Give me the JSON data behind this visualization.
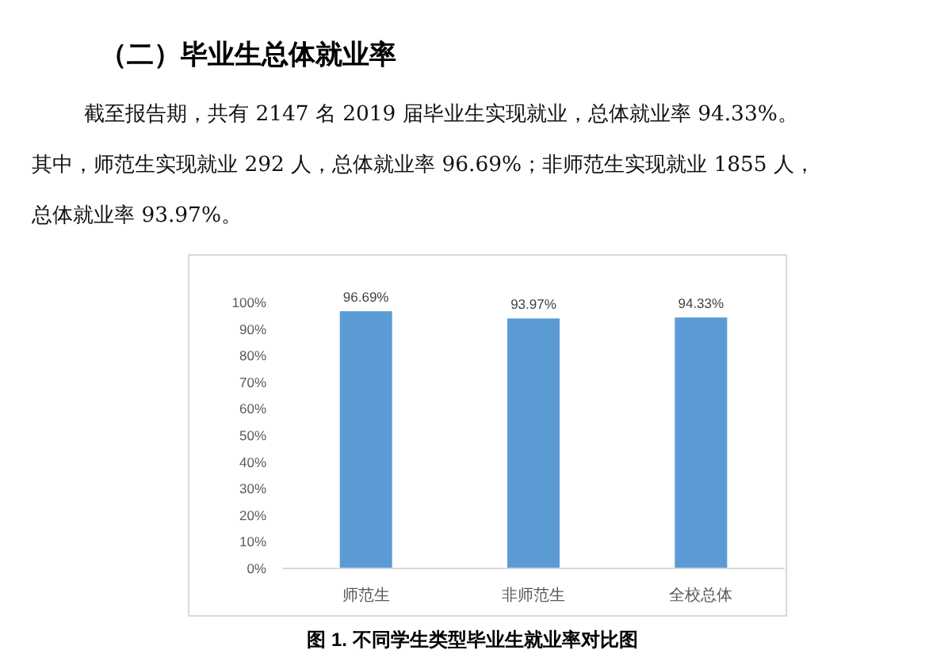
{
  "chart_data": {
    "type": "bar",
    "title": "（二）毕业生总体就业率",
    "annotations": [
      "截至报告期，共有 2147 名 2019 届毕业生实现就业，总体就业率 94.33%。",
      "其中，师范生实现就业 292 人，总体就业率 96.69%；非师范生实现就业 1855 人，",
      "总体就业率 93.97%。",
      "图 1. 不同学生类型毕业生就业率对比图"
    ],
    "categories": [
      "师范生",
      "非师范生",
      "全校总体"
    ],
    "values": [
      96.69,
      93.97,
      94.33
    ],
    "value_labels": [
      "96.69%",
      "93.97%",
      "94.33%"
    ],
    "color": "#5b9bd5",
    "ylim": [
      0,
      100
    ],
    "yticks": [
      {
        "value": 0,
        "label": "0%"
      },
      {
        "value": 10,
        "label": "10%"
      },
      {
        "value": 20,
        "label": "20%"
      },
      {
        "value": 30,
        "label": "30%"
      },
      {
        "value": 40,
        "label": "40%"
      },
      {
        "value": 50,
        "label": "50%"
      },
      {
        "value": 60,
        "label": "60%"
      },
      {
        "value": 70,
        "label": "70%"
      },
      {
        "value": 80,
        "label": "80%"
      },
      {
        "value": 90,
        "label": "90%"
      },
      {
        "value": 100,
        "label": "100%"
      }
    ],
    "grid": false
  }
}
